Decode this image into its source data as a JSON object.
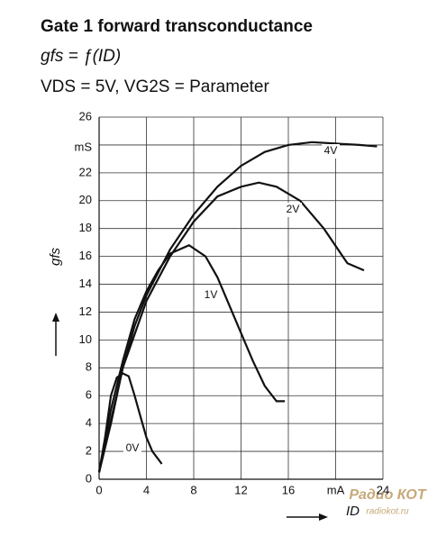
{
  "chart_data": {
    "type": "line",
    "title": "Gate 1 forward transconductance",
    "subtitle": "gfs = ƒ(ID)",
    "parameter": "VDS = 5V, VG2S = Parameter",
    "ylabel": "gfs",
    "xlabel": "ID",
    "watermark": [
      "Радио КОТ",
      "radiokot.ru"
    ],
    "grid": true,
    "xlim": [
      0,
      24
    ],
    "ylim": [
      0,
      26
    ],
    "xticks": [
      0,
      4,
      8,
      12,
      16,
      {
        "value": 20,
        "label": "mA"
      },
      24
    ],
    "yticks": [
      0,
      2,
      4,
      6,
      8,
      10,
      12,
      14,
      16,
      18,
      20,
      22,
      {
        "value": 24,
        "label": "mS"
      },
      26
    ],
    "series": [
      {
        "name": "4V",
        "color": "#111111",
        "x": [
          0,
          1,
          2,
          3,
          4,
          6,
          8,
          10,
          12,
          14,
          16,
          18,
          20,
          22,
          23.5
        ],
        "values": [
          0.5,
          4,
          8,
          11,
          13.2,
          16.5,
          19,
          21,
          22.5,
          23.5,
          24,
          24.2,
          24.1,
          24,
          23.9
        ]
      },
      {
        "name": "2V",
        "color": "#111111",
        "x": [
          0,
          2,
          4,
          6,
          8,
          10,
          12,
          13.5,
          15,
          17,
          19,
          21,
          22.4
        ],
        "values": [
          0.5,
          8,
          12.8,
          16,
          18.5,
          20.3,
          21,
          21.3,
          21,
          20,
          18,
          15.5,
          15
        ]
      },
      {
        "name": "1V",
        "color": "#111111",
        "x": [
          0,
          1,
          2,
          3,
          4,
          5,
          6,
          7.6,
          9,
          10,
          11,
          12,
          13,
          14,
          15,
          15.7
        ],
        "values": [
          0.5,
          5,
          8.5,
          11.5,
          13.5,
          15,
          16.2,
          16.8,
          16,
          14.5,
          12.5,
          10.5,
          8.5,
          6.7,
          5.6,
          5.6
        ]
      },
      {
        "name": "0V",
        "color": "#111111",
        "x": [
          0,
          0.5,
          1,
          1.5,
          2,
          2.5,
          3,
          3.5,
          4,
          4.5,
          5.3
        ],
        "values": [
          0.5,
          3,
          6,
          7.3,
          7.6,
          7.4,
          6,
          4.5,
          3,
          2,
          1.1
        ]
      }
    ]
  }
}
